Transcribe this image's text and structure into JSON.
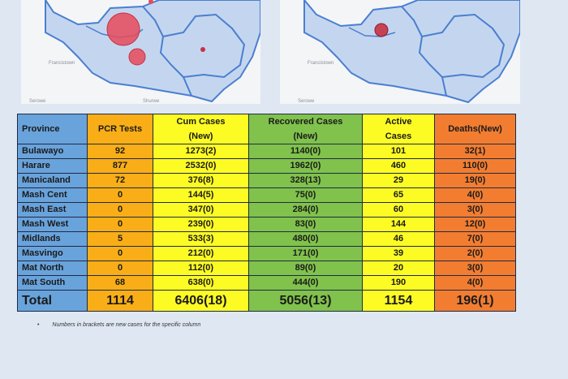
{
  "maps": {
    "left": {
      "labels": [
        "Francistown",
        "Serowe",
        "Shurwe"
      ]
    },
    "right": {
      "labels": [
        "Francistown",
        "Serowe"
      ]
    }
  },
  "colors": {
    "province": "#69a3dc",
    "pcr": "#f9ae17",
    "cum": "#fdfb24",
    "recovered": "#80c24c",
    "active": "#fdfb24",
    "deaths": "#f27d31"
  },
  "table": {
    "headers": {
      "province": "Province",
      "pcr": "PCR Tests",
      "cum_line1": "Cum Cases",
      "cum_line2": "(New)",
      "recovered_line1": "Recovered Cases",
      "recovered_line2": "(New)",
      "active_line1": "Active",
      "active_line2": "Cases",
      "deaths": "Deaths(New)"
    },
    "rows": [
      {
        "province": "Bulawayo",
        "pcr": "92",
        "cum": "1273(2)",
        "recovered": "1140(0)",
        "active": "101",
        "deaths": "32(1)"
      },
      {
        "province": "Harare",
        "pcr": "877",
        "cum": "2532(0)",
        "recovered": "1962(0)",
        "active": "460",
        "deaths": "110(0)"
      },
      {
        "province": "Manicaland",
        "pcr": "72",
        "cum": "376(8)",
        "recovered": "328(13)",
        "active": "29",
        "deaths": "19(0)"
      },
      {
        "province": "Mash Cent",
        "pcr": "0",
        "cum": "144(5)",
        "recovered": "75(0)",
        "active": "65",
        "deaths": "4(0)"
      },
      {
        "province": "Mash East",
        "pcr": "0",
        "cum": "347(0)",
        "recovered": "284(0)",
        "active": "60",
        "deaths": "3(0)"
      },
      {
        "province": "Mash West",
        "pcr": "0",
        "cum": "239(0)",
        "recovered": "83(0)",
        "active": "144",
        "deaths": "12(0)"
      },
      {
        "province": "Midlands",
        "pcr": "5",
        "cum": "533(3)",
        "recovered": "480(0)",
        "active": "46",
        "deaths": "7(0)"
      },
      {
        "province": "Masvingo",
        "pcr": "0",
        "cum": "212(0)",
        "recovered": "171(0)",
        "active": "39",
        "deaths": "2(0)"
      },
      {
        "province": "Mat North",
        "pcr": "0",
        "cum": "112(0)",
        "recovered": "89(0)",
        "active": "20",
        "deaths": "3(0)"
      },
      {
        "province": "Mat South",
        "pcr": "68",
        "cum": "638(0)",
        "recovered": "444(0)",
        "active": "190",
        "deaths": "4(0)"
      }
    ],
    "total": {
      "province": "Total",
      "pcr": "1114",
      "cum": "6406(18)",
      "recovered": "5056(13)",
      "active": "1154",
      "deaths": "196(1)"
    }
  },
  "footnote": {
    "bullet": "•",
    "text": "Numbers in brackets are new cases for the specific column"
  }
}
